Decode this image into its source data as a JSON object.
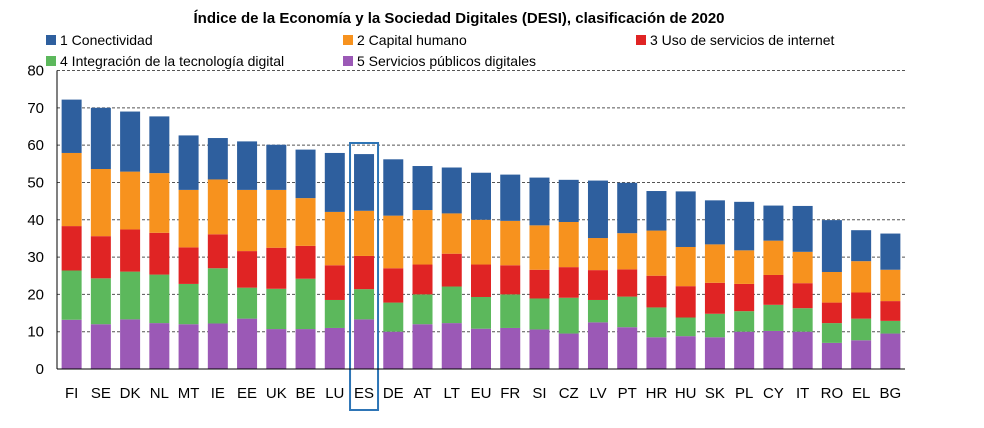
{
  "chart_data": {
    "type": "bar",
    "stacked": true,
    "title": "Índice de la Economía y la Sociedad Digitales (DESI), clasificación de 2020",
    "xlabel": "",
    "ylabel": "",
    "ylim": [
      0,
      80
    ],
    "yticks": [
      0,
      10,
      20,
      30,
      40,
      50,
      60,
      70,
      80
    ],
    "grid": true,
    "highlight_category": "ES",
    "categories": [
      "FI",
      "SE",
      "DK",
      "NL",
      "MT",
      "IE",
      "EE",
      "UK",
      "BE",
      "LU",
      "ES",
      "DE",
      "AT",
      "LT",
      "EU",
      "FR",
      "SI",
      "CZ",
      "LV",
      "PT",
      "HR",
      "HU",
      "SK",
      "PL",
      "CY",
      "IT",
      "RO",
      "EL",
      "BG"
    ],
    "series": [
      {
        "name": "5 Servicios públicos digitales",
        "color": "#9b59b6",
        "values": [
          13.2,
          12.0,
          13.3,
          12.3,
          12.0,
          12.2,
          13.5,
          10.7,
          10.7,
          11.0,
          13.3,
          10.0,
          12.0,
          12.3,
          10.8,
          11.0,
          10.6,
          9.5,
          12.5,
          11.2,
          8.5,
          8.8,
          8.5,
          10.0,
          10.2,
          10.0,
          7.0,
          7.7,
          9.5
        ]
      },
      {
        "name": "4 Integración de la tecnología digital",
        "color": "#5cb85c",
        "values": [
          13.2,
          12.3,
          12.8,
          13.0,
          10.8,
          14.8,
          8.3,
          10.8,
          13.5,
          7.5,
          8.1,
          7.8,
          8.0,
          9.8,
          8.5,
          9.0,
          8.3,
          9.6,
          6.0,
          8.2,
          8.0,
          5.0,
          6.3,
          5.5,
          7.0,
          6.3,
          5.3,
          5.8,
          3.4
        ]
      },
      {
        "name": "3 Uso de servicios de internet",
        "color": "#e02424",
        "values": [
          11.9,
          11.3,
          11.3,
          11.2,
          9.8,
          9.1,
          9.8,
          11.0,
          8.8,
          9.3,
          8.9,
          9.2,
          8.0,
          8.8,
          8.7,
          7.8,
          7.7,
          8.2,
          8.0,
          7.3,
          8.5,
          8.4,
          8.3,
          7.3,
          8.0,
          6.7,
          5.5,
          7.0,
          5.3
        ]
      },
      {
        "name": "2 Capital humano",
        "color": "#f7921e",
        "values": [
          19.6,
          18.0,
          15.5,
          16.0,
          15.4,
          14.7,
          16.4,
          15.5,
          12.8,
          14.3,
          12.1,
          14.1,
          14.6,
          10.8,
          12.0,
          11.9,
          11.9,
          12.1,
          8.6,
          9.7,
          12.1,
          10.5,
          10.3,
          9.0,
          9.2,
          8.4,
          8.2,
          8.4,
          8.4
        ]
      },
      {
        "name": "1 Conectividad",
        "color": "#2e5f9e",
        "values": [
          14.3,
          16.4,
          16.1,
          15.2,
          14.6,
          11.1,
          13.0,
          12.1,
          13.0,
          15.8,
          15.2,
          15.1,
          11.8,
          12.3,
          12.6,
          12.4,
          12.8,
          11.3,
          15.4,
          13.5,
          10.6,
          14.9,
          11.8,
          13.0,
          9.4,
          12.3,
          13.9,
          8.3,
          9.7
        ]
      }
    ],
    "legend": [
      "1 Conectividad",
      "2 Capital humano",
      "3 Uso de servicios de internet",
      "4 Integración de la tecnología digital",
      "5 Servicios públicos digitales"
    ],
    "legend_colors": [
      "#2e5f9e",
      "#f7921e",
      "#e02424",
      "#5cb85c",
      "#9b59b6"
    ],
    "legend_position": "top"
  }
}
